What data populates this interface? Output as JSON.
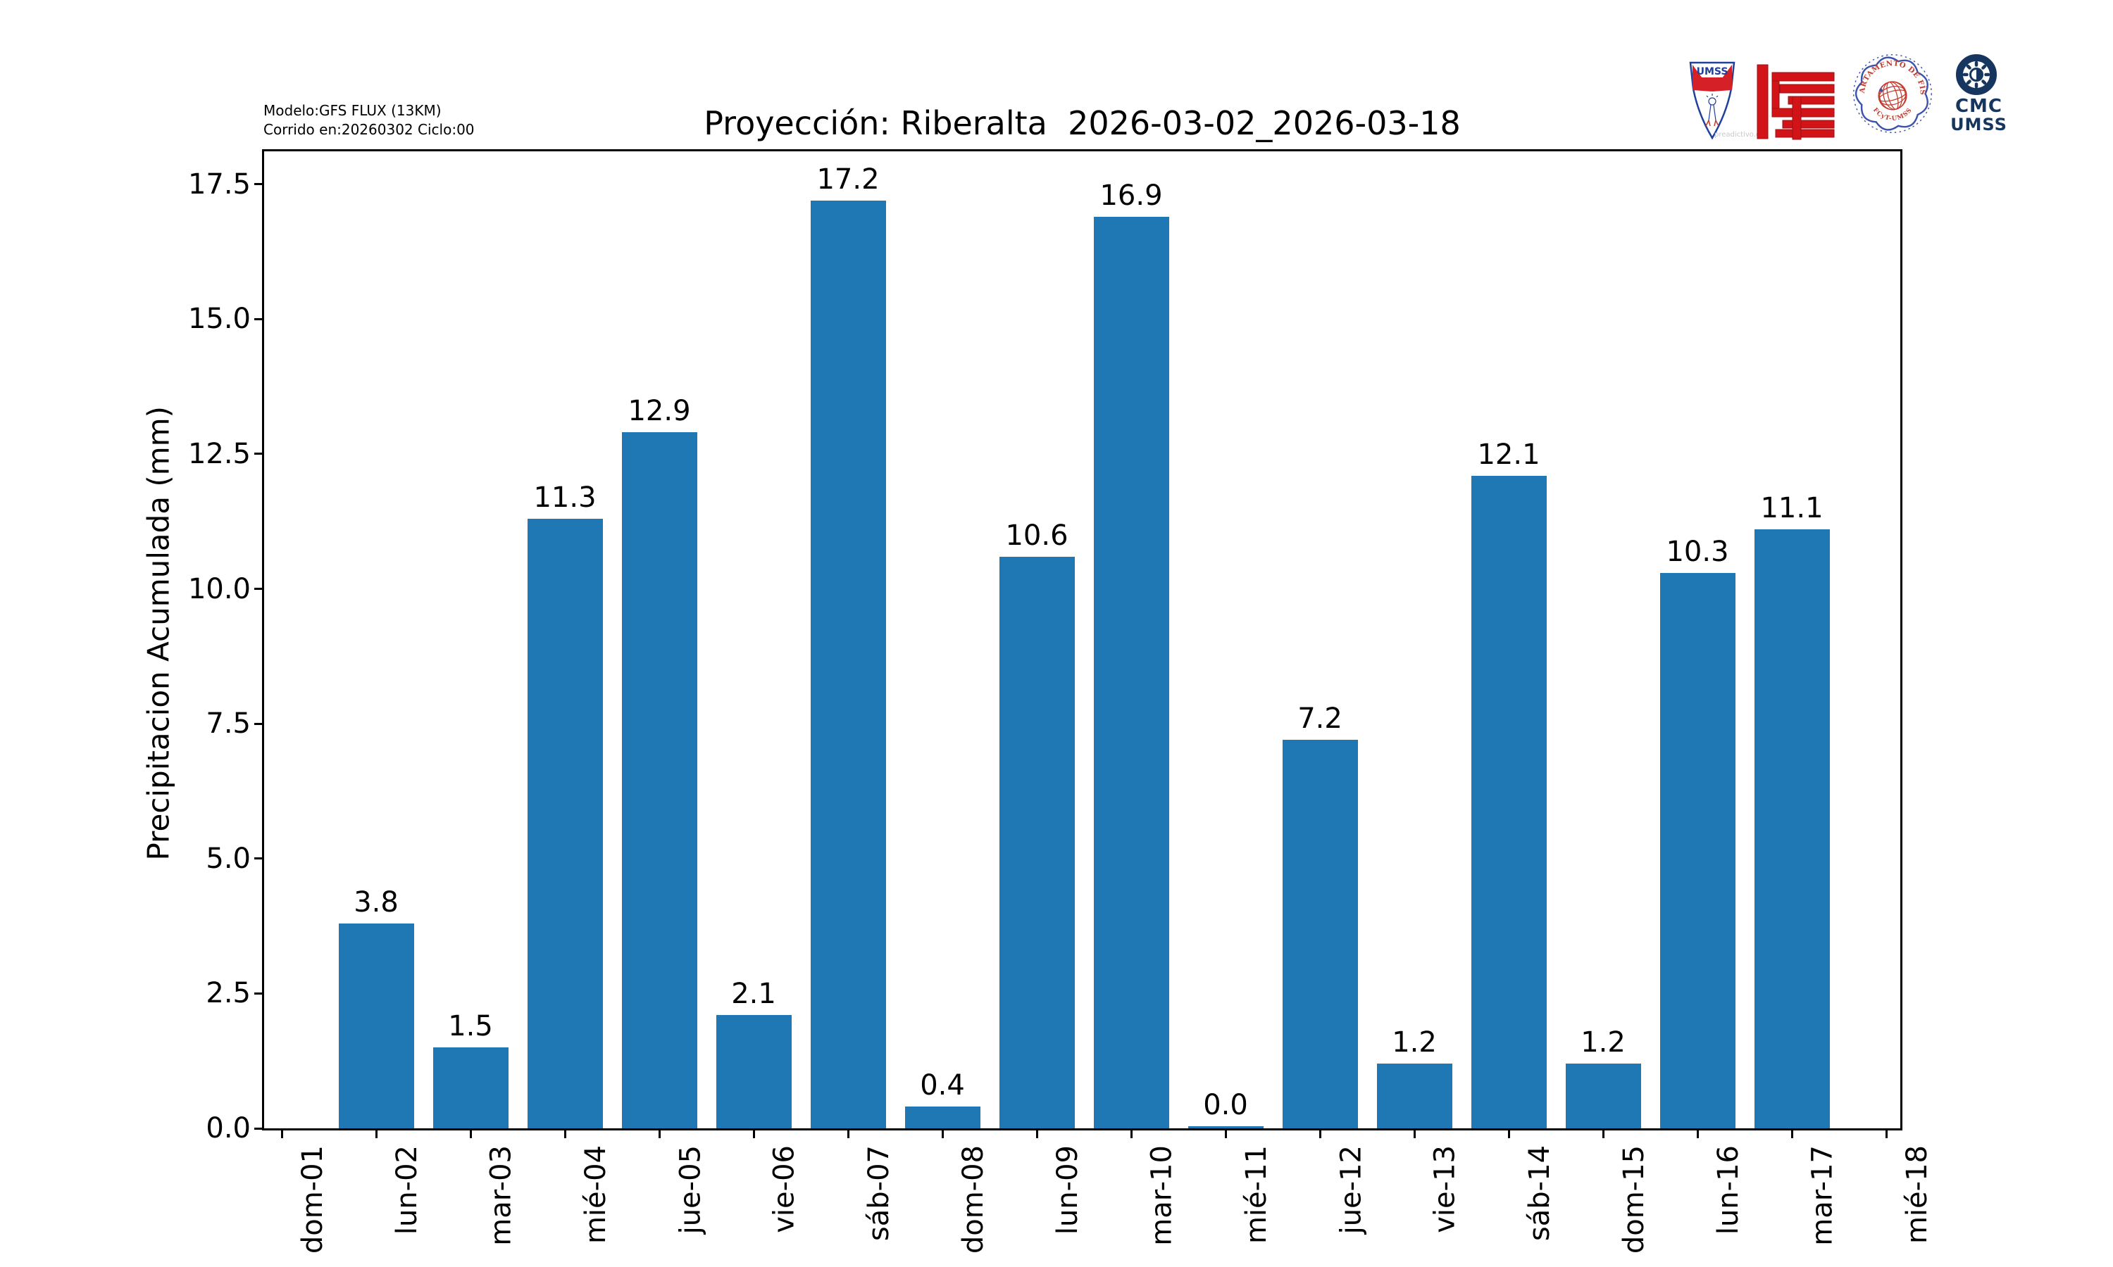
{
  "header": {
    "model_line1": "Modelo:GFS FLUX (13KM)",
    "model_line2": "Corrido en:20260302 Ciclo:00",
    "title": "Proyección: Riberalta  2026-03-02_2026-03-18"
  },
  "logos": {
    "umss_shield": {
      "label": "UMSS",
      "watermark": "preadictivo.con"
    },
    "fcyt_maze": {
      "name": "FCyT maze logo"
    },
    "fisica_seal": {
      "top_text": "DEPARTAMENTO DE FÍSICA",
      "bottom_text": "FCyT-UMSS"
    },
    "cmc": {
      "line1": "CMC",
      "line2": "UMSS"
    }
  },
  "chart_data": {
    "type": "bar",
    "title": "Proyección: Riberalta  2026-03-02_2026-03-18",
    "xlabel": "",
    "ylabel": "Precipitacion Acumulada (mm)",
    "bar_color": "#1f77b4",
    "axis_color": "#000000",
    "grid": false,
    "legend_position": "none",
    "categories": [
      "dom-01",
      "lun-02",
      "mar-03",
      "mié-04",
      "jue-05",
      "vie-06",
      "sáb-07",
      "dom-08",
      "lun-09",
      "mar-10",
      "mié-11",
      "jue-12",
      "vie-13",
      "sáb-14",
      "dom-15",
      "lun-16",
      "mar-17",
      "mié-18"
    ],
    "values": [
      null,
      3.8,
      1.5,
      11.3,
      12.9,
      2.1,
      17.2,
      0.4,
      10.6,
      16.9,
      0.0,
      7.2,
      1.2,
      12.1,
      1.2,
      10.3,
      11.1,
      null
    ],
    "bar_labels": [
      null,
      "3.8",
      "1.5",
      "11.3",
      "12.9",
      "2.1",
      "17.2",
      "0.4",
      "10.6",
      "16.9",
      "0.0",
      "7.2",
      "1.2",
      "12.1",
      "1.2",
      "10.3",
      "11.1",
      null
    ],
    "ytick_labels": [
      "0.0",
      "2.5",
      "5.0",
      "7.5",
      "10.0",
      "12.5",
      "15.0",
      "17.5"
    ],
    "yticks": [
      0.0,
      2.5,
      5.0,
      7.5,
      10.0,
      12.5,
      15.0,
      17.5
    ],
    "ylim": [
      0,
      18.11
    ]
  }
}
